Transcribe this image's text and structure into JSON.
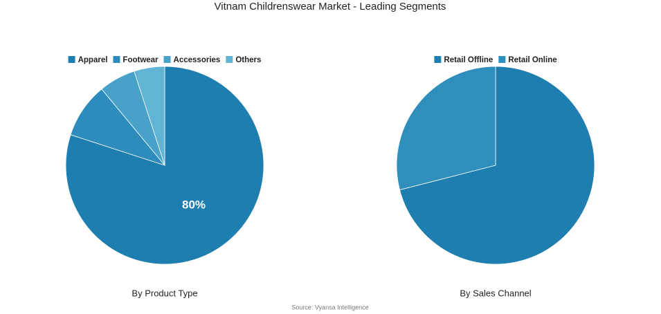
{
  "title": "Vitnam Childrenswear Market - Leading Segments",
  "source": "Source: Vyansa Intelligence",
  "chart_data": [
    {
      "type": "pie",
      "title": "By Product Type",
      "categories": [
        "Apparel",
        "Footwear",
        "Accessories",
        "Others"
      ],
      "values": [
        80,
        9,
        6,
        5
      ],
      "value_labels": [
        "80%",
        null,
        null,
        null
      ],
      "colors": [
        "#1e7eb0",
        "#2e8cbc",
        "#47a1c9",
        "#62b4d5"
      ]
    },
    {
      "type": "pie",
      "title": "By Sales Channel",
      "categories": [
        "Retail Offline",
        "Retail Online"
      ],
      "values": [
        71,
        29
      ],
      "colors": [
        "#1e7eb0",
        "#2f8ebb"
      ]
    }
  ]
}
